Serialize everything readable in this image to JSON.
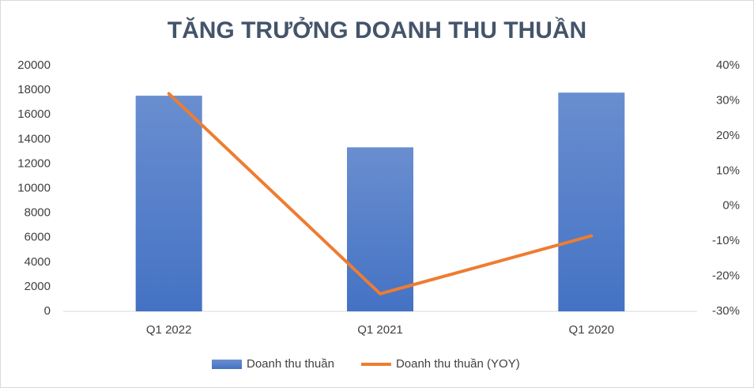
{
  "chart_data": {
    "type": "bar-line",
    "title": "TĂNG TRƯỞNG DOANH THU THUẦN",
    "categories": [
      "Q1 2022",
      "Q1 2021",
      "Q1 2020"
    ],
    "series": [
      {
        "name": "Doanh thu thuần",
        "type": "bar",
        "color": "#4472c4",
        "values": [
          17550,
          13350,
          17800
        ]
      },
      {
        "name": "Doanh thu thuần (YOY)",
        "type": "line",
        "axis": "y2",
        "color": "#ed7d31",
        "values": [
          32,
          -25,
          -8.5
        ]
      }
    ],
    "ylim": [
      0,
      20000
    ],
    "yticks": [
      0,
      2000,
      4000,
      6000,
      8000,
      10000,
      12000,
      14000,
      16000,
      18000,
      20000
    ],
    "y2lim": [
      -30,
      40
    ],
    "y2ticks": [
      {
        "value": -30,
        "label": "-30%"
      },
      {
        "value": -20,
        "label": "-20%"
      },
      {
        "value": -10,
        "label": "-10%"
      },
      {
        "value": 0,
        "label": "0%"
      },
      {
        "value": 10,
        "label": "10%"
      },
      {
        "value": 20,
        "label": "20%"
      },
      {
        "value": 30,
        "label": "30%"
      },
      {
        "value": 40,
        "label": "40%"
      }
    ],
    "grid": false,
    "legend": "bottom"
  }
}
